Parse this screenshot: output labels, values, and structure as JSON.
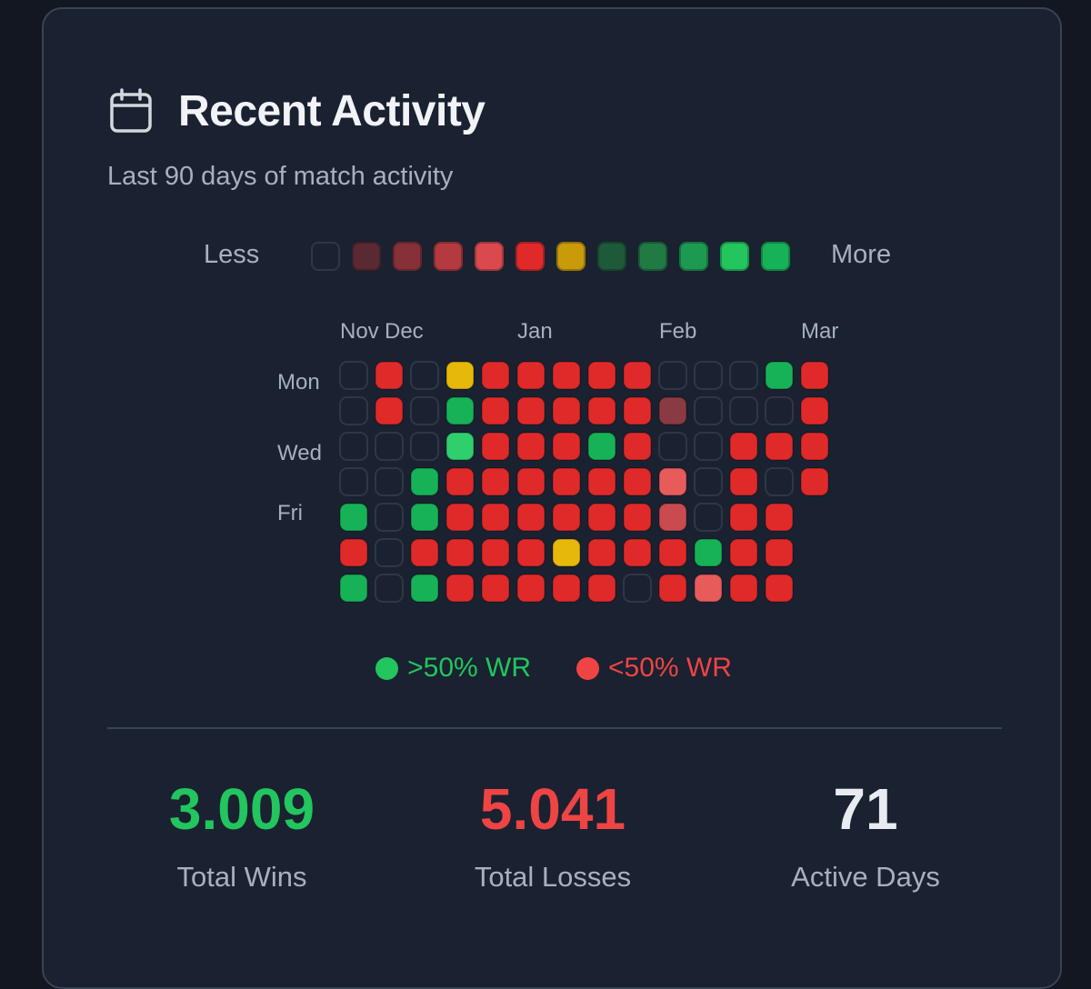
{
  "card": {
    "title": "Recent Activity",
    "subtitle": "Last 90 days of match activity",
    "icon": "calendar-icon"
  },
  "scale_legend": {
    "less_label": "Less",
    "more_label": "More",
    "swatches": [
      "#1a2130",
      "#5a2a33",
      "#873038",
      "#b53a3f",
      "#da4a4c",
      "#e02a2a",
      "#c99a0a",
      "#1e5a3a",
      "#1f7a44",
      "#1d9a52",
      "#22c55e",
      "#17b257"
    ]
  },
  "chart_data": {
    "type": "heatmap",
    "months": [
      "Nov",
      "Dec",
      "Jan",
      "Feb",
      "Mar"
    ],
    "weekday_labels": [
      "Mon",
      "Wed",
      "Fri"
    ],
    "colors": {
      "empty": "#1a2130",
      "empty_border": "#2f3746",
      "green": "#17b257",
      "green_bright": "#2ecf6c",
      "red": "#e02a2a",
      "red_light": "#e85b5b",
      "red_mid": "#c94b50",
      "red_faded": "#8a3a42",
      "yellow": "#e6b80a"
    },
    "legend_key": {
      "E": "no matches",
      "G": "win rate above 50%",
      "B": "win rate above 50% (bright)",
      "R": "win rate below 50%",
      "L": "win rate below 50% (light)",
      "M": "win rate below 50% (medium)",
      "D": "win rate below 50% (faded)",
      "Y": "win rate 50%"
    },
    "rows": [
      [
        "E",
        "R",
        "E",
        "Y",
        "R",
        "R",
        "R",
        "R",
        "R",
        "E",
        "E",
        "E",
        "G",
        "R"
      ],
      [
        "E",
        "R",
        "E",
        "G",
        "R",
        "R",
        "R",
        "R",
        "R",
        "D",
        "E",
        "E",
        "E",
        "R"
      ],
      [
        "E",
        "E",
        "E",
        "B",
        "R",
        "R",
        "R",
        "G",
        "R",
        "E",
        "E",
        "R",
        "R",
        "R"
      ],
      [
        "E",
        "E",
        "G",
        "R",
        "R",
        "R",
        "R",
        "R",
        "R",
        "L",
        "E",
        "R",
        "E",
        "R"
      ],
      [
        "G",
        "E",
        "G",
        "R",
        "R",
        "R",
        "R",
        "R",
        "R",
        "M",
        "E",
        "R",
        "R"
      ],
      [
        "R",
        "E",
        "R",
        "R",
        "R",
        "R",
        "Y",
        "R",
        "R",
        "R",
        "G",
        "R",
        "R"
      ],
      [
        "G",
        "E",
        "G",
        "R",
        "R",
        "R",
        "R",
        "R",
        "E",
        "R",
        "L",
        "R",
        "R"
      ]
    ]
  },
  "wr_legend": {
    "above": {
      "label": ">50% WR",
      "color": "#22c55e"
    },
    "below": {
      "label": "<50% WR",
      "color": "#ef4444"
    }
  },
  "stats": {
    "wins": {
      "value": "3.009",
      "label": "Total Wins",
      "color": "#22c55e"
    },
    "losses": {
      "value": "5.041",
      "label": "Total Losses",
      "color": "#ef4444"
    },
    "active": {
      "value": "71",
      "label": "Active Days",
      "color": "#e8ebf0"
    }
  }
}
